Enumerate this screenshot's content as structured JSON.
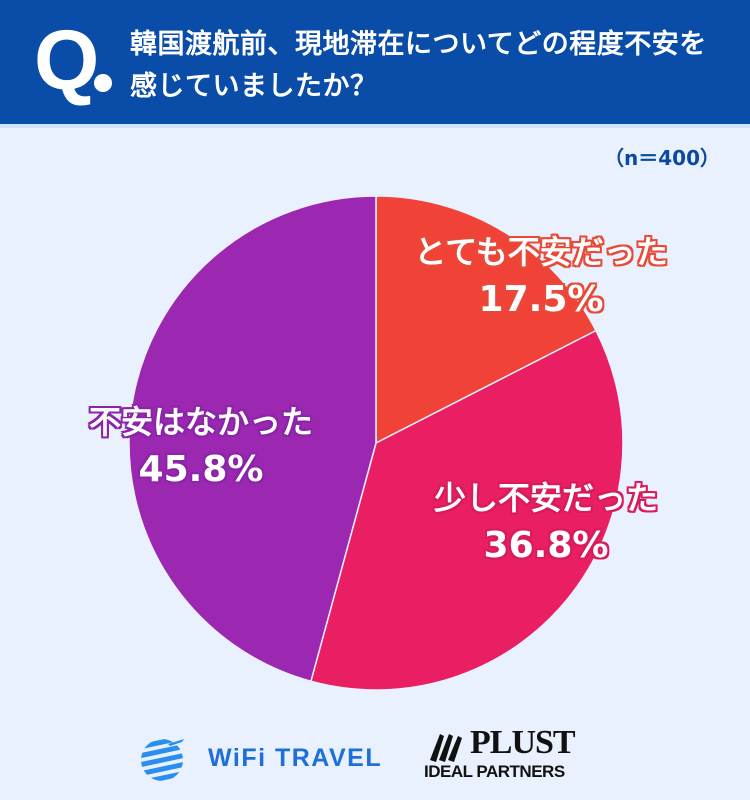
{
  "header": {
    "q_mark": "Q",
    "question": "韓国渡航前、現地滞在についてどの程度不安を感じていましたか？"
  },
  "sample": "（n＝400）",
  "chart_data": {
    "type": "pie",
    "title": "韓国渡航前、現地滞在についてどの程度不安を感じていましたか？",
    "n": 400,
    "categories": [
      "とても不安だった",
      "少し不安だった",
      "不安はなかった"
    ],
    "values": [
      17.5,
      36.8,
      45.8
    ],
    "unit": "%",
    "colors": [
      "#f04236",
      "#e91e63",
      "#9c27b0"
    ],
    "start_angle": "12 o'clock",
    "direction": "clockwise",
    "legend": "none (labels on slices)"
  },
  "labels": {
    "very_anxious": {
      "text": "とても不安だった",
      "pct": "17.5%"
    },
    "somewhat_anxious": {
      "text": "少し不安だった",
      "pct": "36.8%"
    },
    "not_anxious": {
      "text": "不安はなかった",
      "pct": "45.8%"
    }
  },
  "logos": {
    "wifi": "WiFi TRAVEL",
    "plust": "PLUST",
    "plust_sub": "IDEAL PARTNERS"
  },
  "colors": {
    "header_bg": "#0a4da8",
    "page_bg": "#e8f1fd",
    "n_label": "#0b4aa0"
  }
}
